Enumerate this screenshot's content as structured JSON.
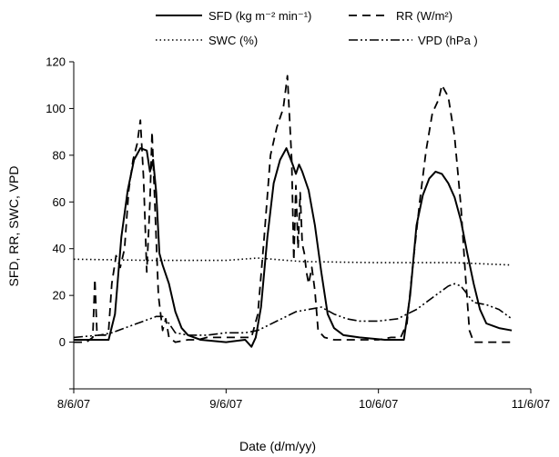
{
  "chart_data": {
    "type": "line",
    "xlabel": "Date (d/m/yy)",
    "ylabel": "SFD, RR, SWC, VPD",
    "ylim": [
      -20,
      120
    ],
    "yticks": [
      0,
      20,
      40,
      60,
      80,
      100,
      120
    ],
    "xlim": [
      "2007-06-08",
      "2007-06-11"
    ],
    "xticks": [
      {
        "value": "2007-06-08",
        "label": "8/6/07"
      },
      {
        "value": "2007-06-09",
        "label": "9/6/07"
      },
      {
        "value": "2007-06-10",
        "label": "10/6/07"
      },
      {
        "value": "2007-06-11",
        "label": "11/6/07"
      }
    ],
    "grid": false,
    "legend_position": "top",
    "series": [
      {
        "name": "SFD",
        "legend_label": "SFD (kg m⁻² min⁻¹)",
        "style": "solid",
        "color": "#000000",
        "points": [
          [
            "2007-06-08T00:00",
            1
          ],
          [
            "2007-06-08T04:00",
            1
          ],
          [
            "2007-06-08T05:30",
            1
          ],
          [
            "2007-06-08T06:30",
            12
          ],
          [
            "2007-06-08T07:30",
            45
          ],
          [
            "2007-06-08T08:30",
            65
          ],
          [
            "2007-06-08T09:30",
            78
          ],
          [
            "2007-06-08T10:30",
            83
          ],
          [
            "2007-06-08T11:30",
            82
          ],
          [
            "2007-06-08T12:00",
            73
          ],
          [
            "2007-06-08T12:30",
            78
          ],
          [
            "2007-06-08T13:00",
            64
          ],
          [
            "2007-06-08T13:30",
            38
          ],
          [
            "2007-06-08T14:00",
            33
          ],
          [
            "2007-06-08T15:00",
            25
          ],
          [
            "2007-06-08T16:00",
            13
          ],
          [
            "2007-06-08T17:00",
            6
          ],
          [
            "2007-06-08T18:00",
            3
          ],
          [
            "2007-06-08T20:00",
            1
          ],
          [
            "2007-06-09T00:00",
            0
          ],
          [
            "2007-06-09T03:00",
            1
          ],
          [
            "2007-06-09T04:00",
            -2
          ],
          [
            "2007-06-09T04:40",
            2
          ],
          [
            "2007-06-09T05:30",
            15
          ],
          [
            "2007-06-09T06:30",
            45
          ],
          [
            "2007-06-09T07:30",
            68
          ],
          [
            "2007-06-09T08:30",
            78
          ],
          [
            "2007-06-09T09:30",
            83
          ],
          [
            "2007-06-09T10:30",
            76
          ],
          [
            "2007-06-09T11:00",
            72
          ],
          [
            "2007-06-09T11:30",
            76
          ],
          [
            "2007-06-09T12:00",
            73
          ],
          [
            "2007-06-09T13:00",
            65
          ],
          [
            "2007-06-09T14:00",
            50
          ],
          [
            "2007-06-09T15:00",
            30
          ],
          [
            "2007-06-09T16:00",
            12
          ],
          [
            "2007-06-09T17:00",
            6
          ],
          [
            "2007-06-09T18:30",
            3
          ],
          [
            "2007-06-09T21:00",
            2
          ],
          [
            "2007-06-10T01:00",
            1
          ],
          [
            "2007-06-10T04:00",
            1
          ],
          [
            "2007-06-10T05:00",
            20
          ],
          [
            "2007-06-10T06:00",
            50
          ],
          [
            "2007-06-10T07:00",
            63
          ],
          [
            "2007-06-10T08:00",
            70
          ],
          [
            "2007-06-10T09:00",
            73
          ],
          [
            "2007-06-10T10:00",
            72
          ],
          [
            "2007-06-10T11:00",
            68
          ],
          [
            "2007-06-10T12:00",
            62
          ],
          [
            "2007-06-10T13:00",
            52
          ],
          [
            "2007-06-10T14:00",
            38
          ],
          [
            "2007-06-10T15:00",
            25
          ],
          [
            "2007-06-10T16:00",
            14
          ],
          [
            "2007-06-10T17:00",
            8
          ],
          [
            "2007-06-10T18:00",
            7
          ],
          [
            "2007-06-10T19:00",
            6
          ],
          [
            "2007-06-10T21:00",
            5
          ]
        ]
      },
      {
        "name": "RR",
        "legend_label": "RR (W/m²)",
        "style": "dashed",
        "color": "#000000",
        "points": [
          [
            "2007-06-08T00:00",
            0
          ],
          [
            "2007-06-08T02:00",
            0
          ],
          [
            "2007-06-08T03:00",
            2
          ],
          [
            "2007-06-08T03:20",
            27
          ],
          [
            "2007-06-08T03:40",
            3
          ],
          [
            "2007-06-08T05:00",
            3
          ],
          [
            "2007-06-08T05:30",
            5
          ],
          [
            "2007-06-08T06:00",
            25
          ],
          [
            "2007-06-08T06:40",
            37
          ],
          [
            "2007-06-08T07:20",
            32
          ],
          [
            "2007-06-08T08:00",
            40
          ],
          [
            "2007-06-08T08:40",
            65
          ],
          [
            "2007-06-08T09:20",
            78
          ],
          [
            "2007-06-08T10:00",
            85
          ],
          [
            "2007-06-08T10:30",
            95
          ],
          [
            "2007-06-08T11:00",
            70
          ],
          [
            "2007-06-08T11:30",
            30
          ],
          [
            "2007-06-08T12:00",
            60
          ],
          [
            "2007-06-08T12:20",
            90
          ],
          [
            "2007-06-08T12:50",
            55
          ],
          [
            "2007-06-08T13:20",
            20
          ],
          [
            "2007-06-08T14:00",
            5
          ],
          [
            "2007-06-08T14:30",
            10
          ],
          [
            "2007-06-08T15:00",
            2
          ],
          [
            "2007-06-08T16:00",
            0
          ],
          [
            "2007-06-08T18:00",
            1
          ],
          [
            "2007-06-08T19:30",
            1
          ],
          [
            "2007-06-08T21:00",
            2
          ],
          [
            "2007-06-09T00:00",
            2
          ],
          [
            "2007-06-09T03:00",
            2
          ],
          [
            "2007-06-09T04:00",
            2
          ],
          [
            "2007-06-09T05:00",
            12
          ],
          [
            "2007-06-09T06:00",
            45
          ],
          [
            "2007-06-09T07:00",
            80
          ],
          [
            "2007-06-09T08:00",
            92
          ],
          [
            "2007-06-09T09:00",
            100
          ],
          [
            "2007-06-09T09:40",
            114
          ],
          [
            "2007-06-09T10:20",
            78
          ],
          [
            "2007-06-09T10:40",
            35
          ],
          [
            "2007-06-09T11:00",
            67
          ],
          [
            "2007-06-09T11:20",
            40
          ],
          [
            "2007-06-09T11:40",
            64
          ],
          [
            "2007-06-09T12:00",
            42
          ],
          [
            "2007-06-09T12:20",
            38
          ],
          [
            "2007-06-09T12:40",
            30
          ],
          [
            "2007-06-09T13:00",
            25
          ],
          [
            "2007-06-09T13:30",
            32
          ],
          [
            "2007-06-09T14:00",
            22
          ],
          [
            "2007-06-09T14:30",
            5
          ],
          [
            "2007-06-09T15:30",
            2
          ],
          [
            "2007-06-09T17:00",
            1
          ],
          [
            "2007-06-09T20:00",
            1
          ],
          [
            "2007-06-10T00:00",
            1
          ],
          [
            "2007-06-10T02:00",
            2
          ],
          [
            "2007-06-10T03:30",
            2
          ],
          [
            "2007-06-10T04:30",
            8
          ],
          [
            "2007-06-10T05:30",
            35
          ],
          [
            "2007-06-10T06:30",
            60
          ],
          [
            "2007-06-10T07:30",
            82
          ],
          [
            "2007-06-10T08:30",
            98
          ],
          [
            "2007-06-10T09:30",
            104
          ],
          [
            "2007-06-10T10:00",
            110
          ],
          [
            "2007-06-10T11:00",
            105
          ],
          [
            "2007-06-10T12:00",
            88
          ],
          [
            "2007-06-10T13:00",
            58
          ],
          [
            "2007-06-10T13:40",
            30
          ],
          [
            "2007-06-10T14:20",
            5
          ],
          [
            "2007-06-10T15:00",
            0
          ],
          [
            "2007-06-10T21:00",
            0
          ]
        ]
      },
      {
        "name": "SWC",
        "legend_label": "SWC (%)",
        "style": "dotted",
        "color": "#000000",
        "points": [
          [
            "2007-06-08T00:00",
            35.5
          ],
          [
            "2007-06-08T12:00",
            35
          ],
          [
            "2007-06-09T00:00",
            35
          ],
          [
            "2007-06-09T05:00",
            36
          ],
          [
            "2007-06-09T12:00",
            34.5
          ],
          [
            "2007-06-10T00:00",
            34
          ],
          [
            "2007-06-10T12:00",
            34
          ],
          [
            "2007-06-10T21:00",
            33
          ]
        ]
      },
      {
        "name": "VPD",
        "legend_label": "VPD (hPa )",
        "style": "dash-dot-dot",
        "color": "#000000",
        "points": [
          [
            "2007-06-08T00:00",
            2
          ],
          [
            "2007-06-08T04:00",
            3
          ],
          [
            "2007-06-08T06:00",
            4
          ],
          [
            "2007-06-08T08:00",
            6
          ],
          [
            "2007-06-08T10:00",
            8
          ],
          [
            "2007-06-08T12:00",
            10
          ],
          [
            "2007-06-08T13:00",
            11
          ],
          [
            "2007-06-08T14:00",
            11
          ],
          [
            "2007-06-08T15:00",
            8
          ],
          [
            "2007-06-08T16:00",
            4
          ],
          [
            "2007-06-08T18:00",
            3
          ],
          [
            "2007-06-08T21:00",
            3
          ],
          [
            "2007-06-09T00:00",
            4
          ],
          [
            "2007-06-09T03:00",
            4
          ],
          [
            "2007-06-09T05:00",
            5
          ],
          [
            "2007-06-09T08:00",
            9
          ],
          [
            "2007-06-09T11:00",
            13
          ],
          [
            "2007-06-09T13:00",
            14
          ],
          [
            "2007-06-09T15:00",
            15
          ],
          [
            "2007-06-09T17:00",
            12
          ],
          [
            "2007-06-09T19:00",
            10
          ],
          [
            "2007-06-09T21:00",
            9
          ],
          [
            "2007-06-10T00:00",
            9
          ],
          [
            "2007-06-10T03:00",
            10
          ],
          [
            "2007-06-10T06:00",
            14
          ],
          [
            "2007-06-10T09:00",
            20
          ],
          [
            "2007-06-10T11:00",
            24
          ],
          [
            "2007-06-10T12:00",
            25
          ],
          [
            "2007-06-10T13:00",
            24
          ],
          [
            "2007-06-10T15:00",
            17
          ],
          [
            "2007-06-10T17:00",
            16
          ],
          [
            "2007-06-10T19:00",
            14
          ],
          [
            "2007-06-10T21:00",
            10
          ]
        ]
      }
    ]
  }
}
